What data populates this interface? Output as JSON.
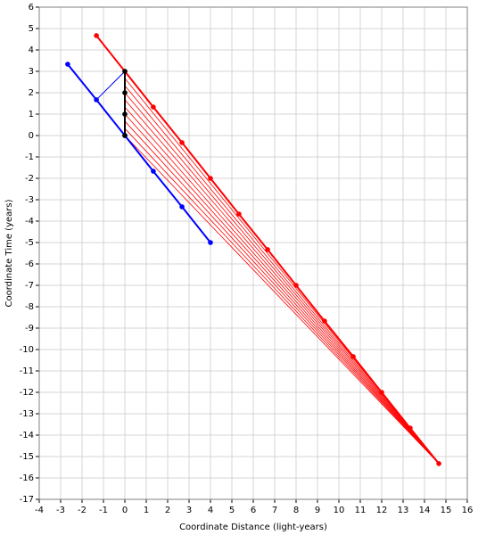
{
  "chart_data": {
    "type": "line",
    "xlabel": "Coordinate Distance (light-years)",
    "ylabel": "Coordinate Time (years)",
    "xlim": [
      -4,
      16
    ],
    "ylim": [
      -17,
      6
    ],
    "xticks": [
      -4,
      -3,
      -2,
      -1,
      0,
      1,
      2,
      3,
      4,
      5,
      6,
      7,
      8,
      9,
      10,
      11,
      12,
      13,
      14,
      15,
      16
    ],
    "yticks": [
      -17,
      -16,
      -15,
      -14,
      -13,
      -12,
      -11,
      -10,
      -9,
      -8,
      -7,
      -6,
      -5,
      -4,
      -3,
      -2,
      -1,
      0,
      1,
      2,
      3,
      4,
      5,
      6
    ],
    "grid": true,
    "series": [
      {
        "color": "#ff0000",
        "width": 0.8,
        "markers": false,
        "x": [
          0,
          14.67
        ],
        "y": [
          0,
          -15.33
        ]
      },
      {
        "color": "#ff0000",
        "width": 0.8,
        "markers": false,
        "x": [
          0,
          14.67
        ],
        "y": [
          0.33,
          -15.33
        ]
      },
      {
        "color": "#ff0000",
        "width": 0.8,
        "markers": false,
        "x": [
          0,
          14.67
        ],
        "y": [
          0.67,
          -15.33
        ]
      },
      {
        "color": "#ff0000",
        "width": 0.8,
        "markers": false,
        "x": [
          0,
          14.67
        ],
        "y": [
          1,
          -15.33
        ]
      },
      {
        "color": "#ff0000",
        "width": 0.8,
        "markers": false,
        "x": [
          0,
          14.67
        ],
        "y": [
          1.33,
          -15.33
        ]
      },
      {
        "color": "#ff0000",
        "width": 0.8,
        "markers": false,
        "x": [
          0,
          14.67
        ],
        "y": [
          1.67,
          -15.33
        ]
      },
      {
        "color": "#ff0000",
        "width": 0.8,
        "markers": false,
        "x": [
          0,
          14.67
        ],
        "y": [
          2,
          -15.33
        ]
      },
      {
        "color": "#ff0000",
        "width": 0.8,
        "markers": false,
        "x": [
          0,
          14.67
        ],
        "y": [
          2.33,
          -15.33
        ]
      },
      {
        "color": "#ff0000",
        "width": 0.8,
        "markers": false,
        "x": [
          0,
          14.67
        ],
        "y": [
          2.67,
          -15.33
        ]
      },
      {
        "color": "#0000ff",
        "width": 1,
        "markers": false,
        "x": [
          -1.33,
          0
        ],
        "y": [
          1.67,
          3
        ]
      },
      {
        "color": "#ff0000",
        "width": 2,
        "markers": true,
        "x": [
          -1.33,
          0,
          1.33,
          2.67,
          4,
          5.33,
          6.67,
          8,
          9.33,
          10.67,
          12,
          13.33,
          14.67
        ],
        "y": [
          4.67,
          3,
          1.33,
          -0.33,
          -2,
          -3.67,
          -5.33,
          -7,
          -8.67,
          -10.33,
          -12,
          -13.67,
          -15.33
        ]
      },
      {
        "color": "#0000ff",
        "width": 2,
        "markers": true,
        "x": [
          -2.67,
          -1.33,
          0,
          1.33,
          2.67,
          4
        ],
        "y": [
          3.33,
          1.67,
          0,
          -1.67,
          -3.33,
          -5
        ]
      },
      {
        "color": "#000000",
        "width": 2,
        "markers": true,
        "x": [
          0,
          0,
          0,
          0
        ],
        "y": [
          0,
          1,
          2,
          3
        ]
      }
    ]
  }
}
